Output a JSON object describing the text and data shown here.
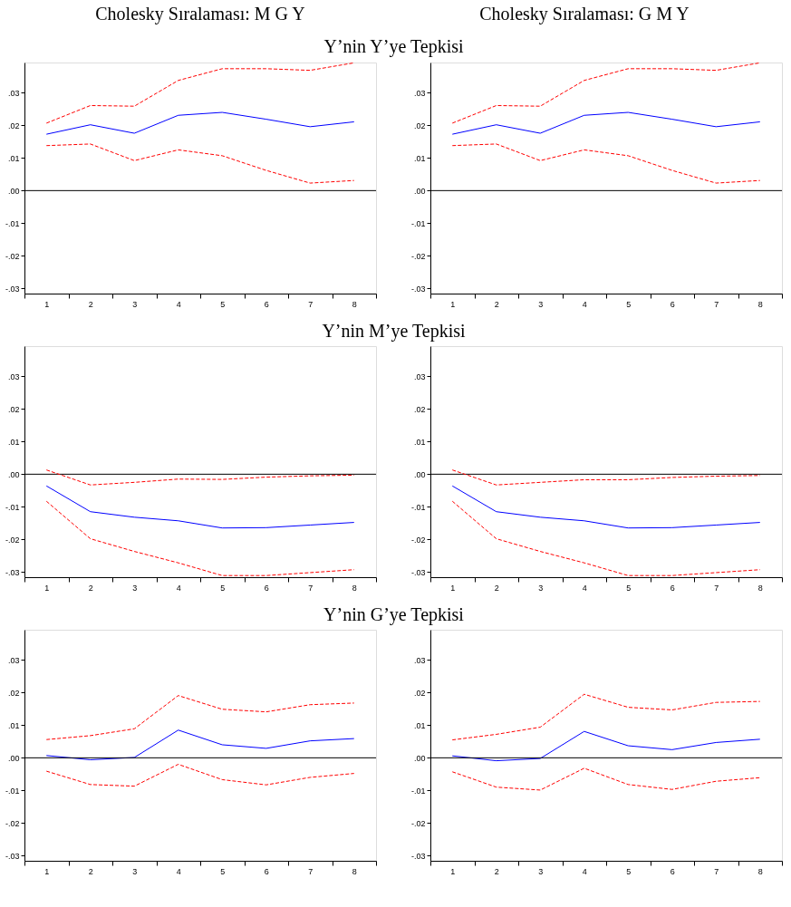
{
  "chart_data": [
    {
      "type": "line",
      "title": "Cholesky Sıralaması: M G Y",
      "subtitle": "Y’nin Y’ye Tepkisi",
      "categories": [
        "1",
        "2",
        "3",
        "4",
        "5",
        "6",
        "7",
        "8"
      ],
      "ylim": [
        -0.0316,
        0.0393
      ],
      "yticks": [
        {
          "value": -0.03,
          "label": "-.03"
        },
        {
          "value": -0.02,
          "label": "-.02"
        },
        {
          "value": -0.01,
          "label": "-.01"
        },
        {
          "value": 0,
          "label": ".00"
        },
        {
          "value": 0.01,
          "label": ".01"
        },
        {
          "value": 0.02,
          "label": ".02"
        },
        {
          "value": 0.03,
          "label": ".03"
        }
      ],
      "ref_lines": [
        {
          "axis": "y",
          "value": 0,
          "color": "#000000",
          "line_style": "solid"
        }
      ],
      "series": [
        {
          "color": "#0000ff",
          "line_style": "solid",
          "values": [
            0.0173,
            0.0202,
            0.0176,
            0.0231,
            0.024,
            0.0219,
            0.0196,
            0.0211
          ]
        },
        {
          "color": "#ff0000",
          "line_style": "dashed",
          "values": [
            0.0207,
            0.0261,
            0.0259,
            0.0338,
            0.0374,
            0.0374,
            0.0369,
            0.0392
          ]
        },
        {
          "color": "#ff0000",
          "line_style": "dashed",
          "values": [
            0.0138,
            0.0143,
            0.0092,
            0.0125,
            0.0107,
            0.0062,
            0.0023,
            0.0031
          ]
        }
      ]
    },
    {
      "type": "line",
      "title": "Cholesky Sıralaması: G M Y",
      "categories": [
        "1",
        "2",
        "3",
        "4",
        "5",
        "6",
        "7",
        "8"
      ],
      "ylim": [
        -0.0316,
        0.0393
      ],
      "yticks": [
        {
          "value": -0.03,
          "label": "-.03"
        },
        {
          "value": -0.02,
          "label": "-.02"
        },
        {
          "value": -0.01,
          "label": "-.01"
        },
        {
          "value": 0,
          "label": ".00"
        },
        {
          "value": 0.01,
          "label": ".01"
        },
        {
          "value": 0.02,
          "label": ".02"
        },
        {
          "value": 0.03,
          "label": ".03"
        }
      ],
      "ref_lines": [
        {
          "axis": "y",
          "value": 0,
          "color": "#000000",
          "line_style": "solid"
        }
      ],
      "series": [
        {
          "color": "#0000ff",
          "line_style": "solid",
          "values": [
            0.0173,
            0.0202,
            0.0176,
            0.0231,
            0.024,
            0.0219,
            0.0196,
            0.0211
          ]
        },
        {
          "color": "#ff0000",
          "line_style": "dashed",
          "values": [
            0.0207,
            0.0261,
            0.0259,
            0.0338,
            0.0374,
            0.0374,
            0.0369,
            0.0392
          ]
        },
        {
          "color": "#ff0000",
          "line_style": "dashed",
          "values": [
            0.0138,
            0.0143,
            0.0092,
            0.0125,
            0.0107,
            0.0062,
            0.0023,
            0.0031
          ]
        }
      ]
    },
    {
      "type": "line",
      "subtitle": "Y’nin M’ye Tepkisi",
      "categories": [
        "1",
        "2",
        "3",
        "4",
        "5",
        "6",
        "7",
        "8"
      ],
      "ylim": [
        -0.0316,
        0.0393
      ],
      "yticks": [
        {
          "value": -0.03,
          "label": "-.03"
        },
        {
          "value": -0.02,
          "label": "-.02"
        },
        {
          "value": -0.01,
          "label": "-.01"
        },
        {
          "value": 0,
          "label": ".00"
        },
        {
          "value": 0.01,
          "label": ".01"
        },
        {
          "value": 0.02,
          "label": ".02"
        },
        {
          "value": 0.03,
          "label": ".03"
        }
      ],
      "ref_lines": [
        {
          "axis": "y",
          "value": 0,
          "color": "#000000",
          "line_style": "solid"
        }
      ],
      "series": [
        {
          "color": "#0000ff",
          "line_style": "solid",
          "values": [
            -0.0036,
            -0.0115,
            -0.0132,
            -0.0143,
            -0.0165,
            -0.0164,
            -0.0156,
            -0.0148
          ]
        },
        {
          "color": "#ff0000",
          "line_style": "dashed",
          "values": [
            0.0013,
            -0.0033,
            -0.0025,
            -0.0015,
            -0.0016,
            -0.0009,
            -0.0005,
            -0.0003
          ]
        },
        {
          "color": "#ff0000",
          "line_style": "dashed",
          "values": [
            -0.0083,
            -0.0198,
            -0.0237,
            -0.0272,
            -0.0311,
            -0.0311,
            -0.0302,
            -0.0293
          ]
        }
      ]
    },
    {
      "type": "line",
      "categories": [
        "1",
        "2",
        "3",
        "4",
        "5",
        "6",
        "7",
        "8"
      ],
      "ylim": [
        -0.0316,
        0.0393
      ],
      "yticks": [
        {
          "value": -0.03,
          "label": "-.03"
        },
        {
          "value": -0.02,
          "label": "-.02"
        },
        {
          "value": -0.01,
          "label": "-.01"
        },
        {
          "value": 0,
          "label": ".00"
        },
        {
          "value": 0.01,
          "label": ".01"
        },
        {
          "value": 0.02,
          "label": ".02"
        },
        {
          "value": 0.03,
          "label": ".03"
        }
      ],
      "ref_lines": [
        {
          "axis": "y",
          "value": 0,
          "color": "#000000",
          "line_style": "solid"
        }
      ],
      "series": [
        {
          "color": "#0000ff",
          "line_style": "solid",
          "values": [
            -0.0036,
            -0.0115,
            -0.0132,
            -0.0143,
            -0.0165,
            -0.0164,
            -0.0156,
            -0.0148
          ]
        },
        {
          "color": "#ff0000",
          "line_style": "dashed",
          "values": [
            0.0013,
            -0.0033,
            -0.0025,
            -0.0017,
            -0.0017,
            -0.001,
            -0.0006,
            -0.0004
          ]
        },
        {
          "color": "#ff0000",
          "line_style": "dashed",
          "values": [
            -0.0083,
            -0.0198,
            -0.0237,
            -0.0272,
            -0.0311,
            -0.0311,
            -0.0302,
            -0.0293
          ]
        }
      ]
    },
    {
      "type": "line",
      "subtitle": "Y’nin G’ye Tepkisi",
      "categories": [
        "1",
        "2",
        "3",
        "4",
        "5",
        "6",
        "7",
        "8"
      ],
      "ylim": [
        -0.0316,
        0.0393
      ],
      "yticks": [
        {
          "value": -0.03,
          "label": "-.03"
        },
        {
          "value": -0.02,
          "label": "-.02"
        },
        {
          "value": -0.01,
          "label": "-.01"
        },
        {
          "value": 0,
          "label": ".00"
        },
        {
          "value": 0.01,
          "label": ".01"
        },
        {
          "value": 0.02,
          "label": ".02"
        },
        {
          "value": 0.03,
          "label": ".03"
        }
      ],
      "ref_lines": [
        {
          "axis": "y",
          "value": 0,
          "color": "#000000",
          "line_style": "solid"
        }
      ],
      "series": [
        {
          "color": "#0000ff",
          "line_style": "solid",
          "values": [
            0.0007,
            -0.0006,
            0.0001,
            0.0085,
            0.004,
            0.0029,
            0.0052,
            0.0059
          ]
        },
        {
          "color": "#ff0000",
          "line_style": "dashed",
          "values": [
            0.0056,
            0.0068,
            0.0089,
            0.0191,
            0.0149,
            0.0141,
            0.0163,
            0.0168
          ]
        },
        {
          "color": "#ff0000",
          "line_style": "dashed",
          "values": [
            -0.0041,
            -0.0082,
            -0.0087,
            -0.002,
            -0.0067,
            -0.0083,
            -0.006,
            -0.0048
          ]
        }
      ]
    },
    {
      "type": "line",
      "categories": [
        "1",
        "2",
        "3",
        "4",
        "5",
        "6",
        "7",
        "8"
      ],
      "ylim": [
        -0.0316,
        0.0393
      ],
      "yticks": [
        {
          "value": -0.03,
          "label": "-.03"
        },
        {
          "value": -0.02,
          "label": "-.02"
        },
        {
          "value": -0.01,
          "label": "-.01"
        },
        {
          "value": 0,
          "label": ".00"
        },
        {
          "value": 0.01,
          "label": ".01"
        },
        {
          "value": 0.02,
          "label": ".02"
        },
        {
          "value": 0.03,
          "label": ".03"
        }
      ],
      "ref_lines": [
        {
          "axis": "y",
          "value": 0,
          "color": "#000000",
          "line_style": "solid"
        }
      ],
      "series": [
        {
          "color": "#0000ff",
          "line_style": "solid",
          "values": [
            0.0006,
            -0.0009,
            -0.0002,
            0.0081,
            0.0037,
            0.0025,
            0.0047,
            0.0057
          ]
        },
        {
          "color": "#ff0000",
          "line_style": "dashed",
          "values": [
            0.0055,
            0.0072,
            0.0094,
            0.0195,
            0.0155,
            0.0147,
            0.017,
            0.0173
          ]
        },
        {
          "color": "#ff0000",
          "line_style": "dashed",
          "values": [
            -0.0043,
            -0.009,
            -0.0099,
            -0.0032,
            -0.0082,
            -0.0097,
            -0.0072,
            -0.0061
          ]
        }
      ]
    }
  ]
}
